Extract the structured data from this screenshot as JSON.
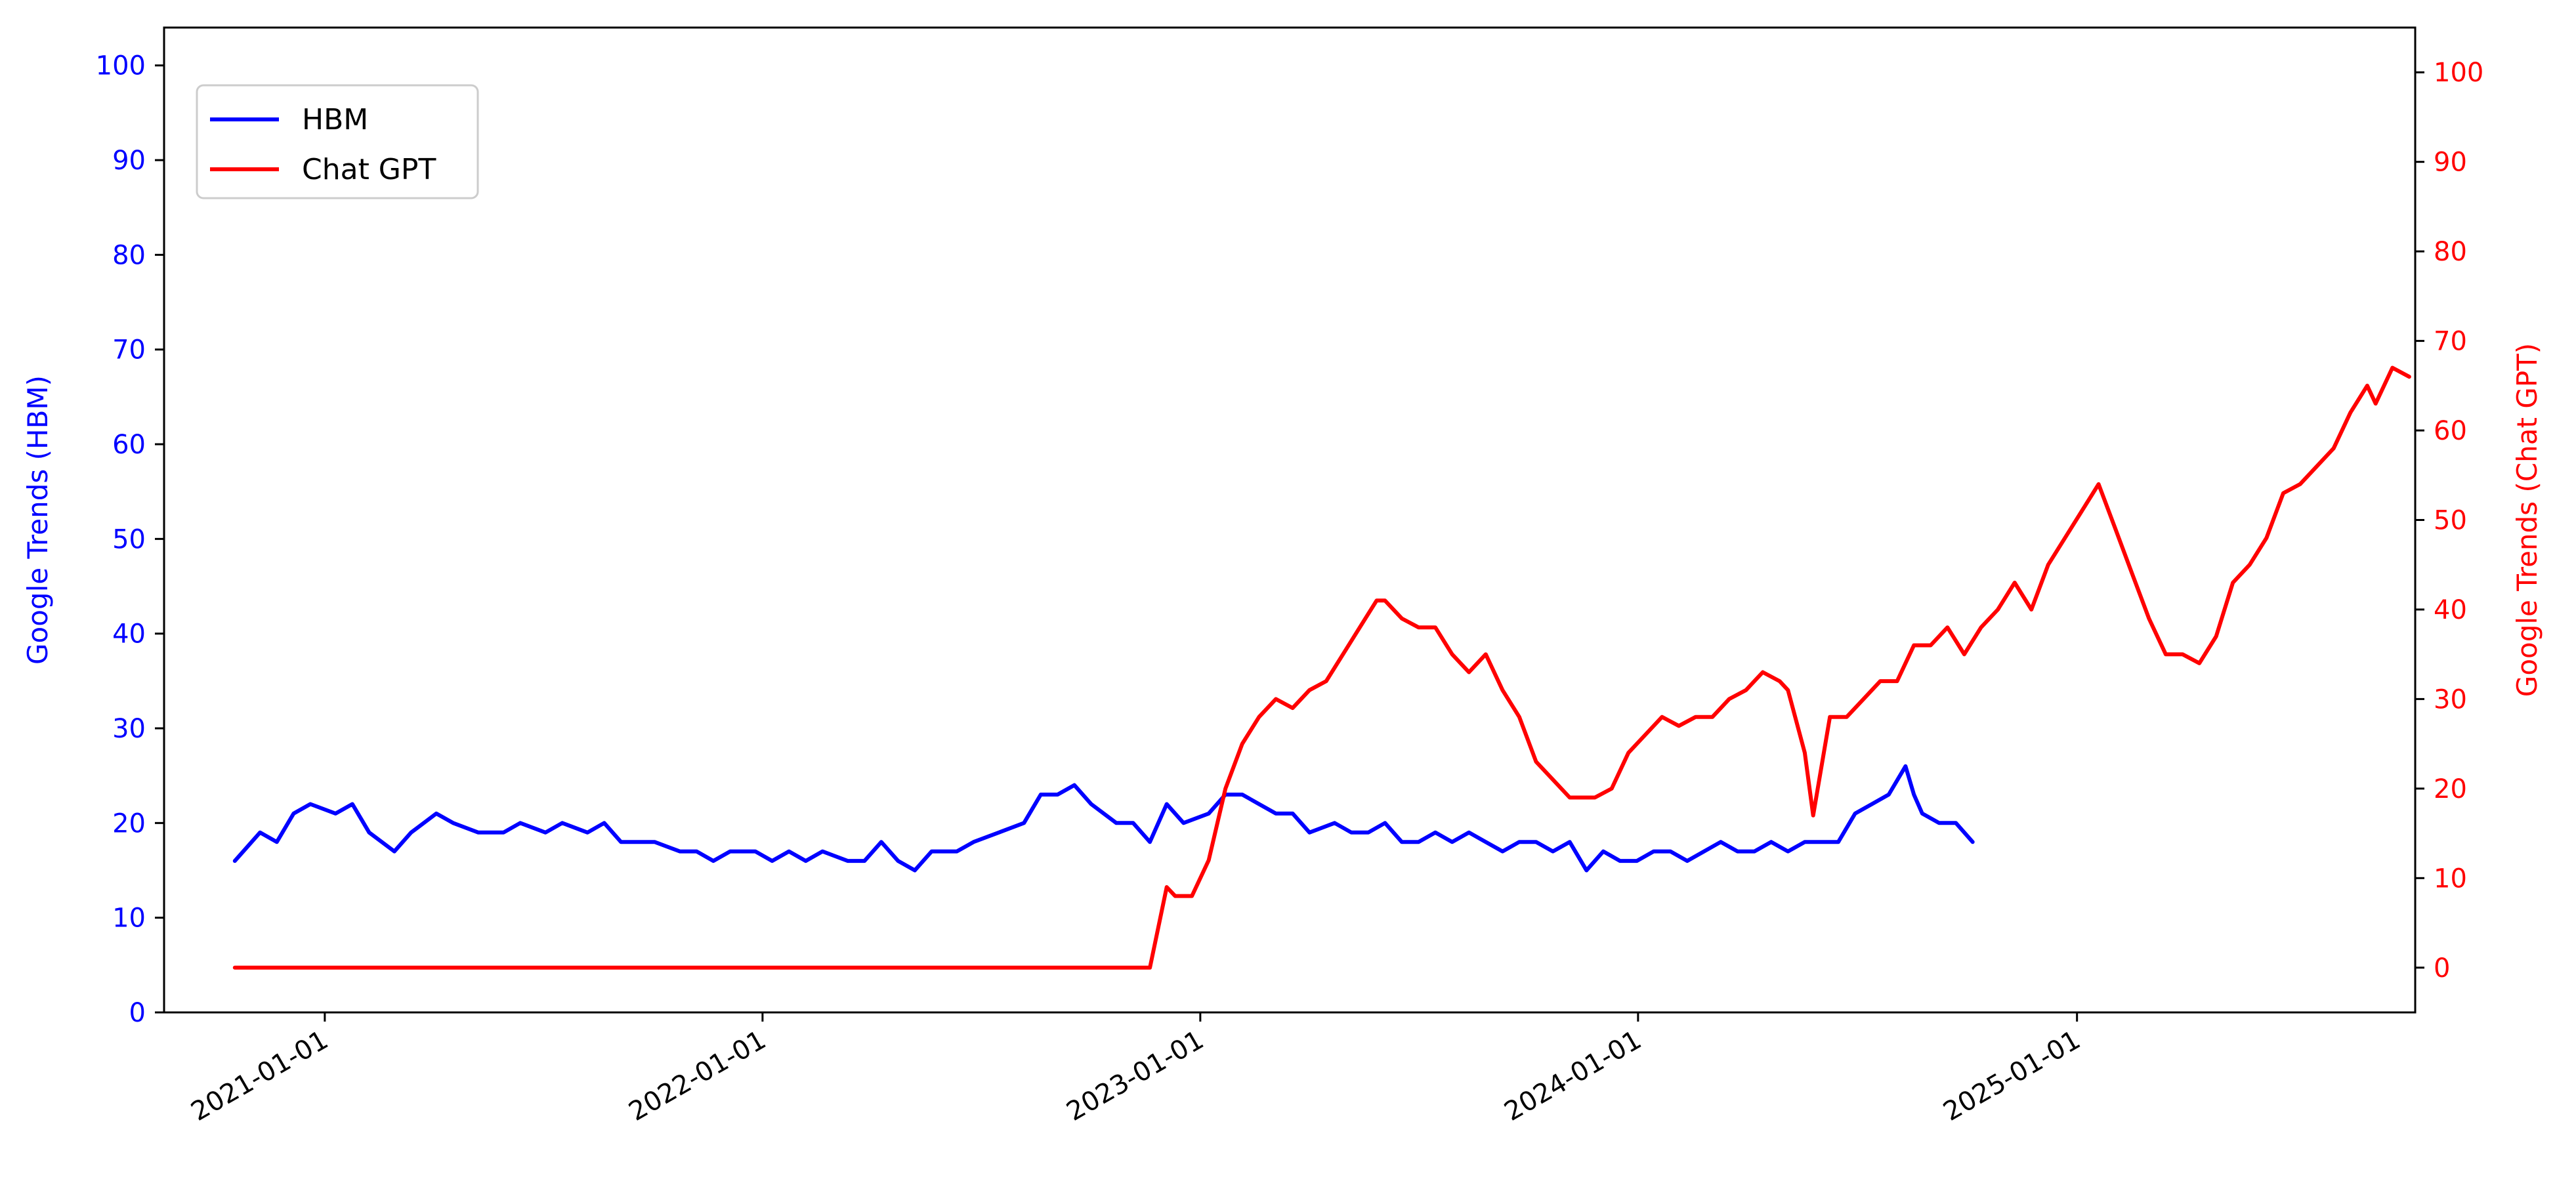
{
  "chart_data": {
    "type": "line",
    "x_axis": {
      "type": "date",
      "range": [
        "2020-08-20",
        "2025-10-10"
      ],
      "ticks": [
        "2021-01-01",
        "2022-01-01",
        "2023-01-01",
        "2024-01-01",
        "2025-01-01"
      ],
      "tick_label_rotation_deg": -30
    },
    "y_left": {
      "label": "Google Trends (HBM)",
      "range": [
        0,
        104
      ],
      "ticks": [
        0,
        10,
        20,
        30,
        40,
        50,
        60,
        70,
        80,
        90,
        100
      ],
      "color": "#0000ff"
    },
    "y_right": {
      "label": "Google Trends (Chat GPT)",
      "range": [
        -5,
        105
      ],
      "ticks": [
        0,
        10,
        20,
        30,
        40,
        50,
        60,
        70,
        80,
        90,
        100
      ],
      "color": "#ff0000"
    },
    "grid": false,
    "legend": {
      "placement": "top-left",
      "entries": [
        {
          "label": "HBM",
          "color": "#0000ff"
        },
        {
          "label": "Chat GPT",
          "color": "#ff0000"
        }
      ]
    },
    "series": [
      {
        "name": "HBM",
        "axis": "left",
        "color": "#0000ff",
        "points": [
          [
            "2020-10-18",
            16
          ],
          [
            "2020-11-08",
            19
          ],
          [
            "2020-11-22",
            18
          ],
          [
            "2020-12-06",
            21
          ],
          [
            "2020-12-20",
            22
          ],
          [
            "2021-01-10",
            21
          ],
          [
            "2021-01-24",
            22
          ],
          [
            "2021-02-07",
            19
          ],
          [
            "2021-02-28",
            17
          ],
          [
            "2021-03-14",
            19
          ],
          [
            "2021-04-04",
            21
          ],
          [
            "2021-04-18",
            20
          ],
          [
            "2021-05-09",
            19
          ],
          [
            "2021-05-30",
            19
          ],
          [
            "2021-06-13",
            20
          ],
          [
            "2021-07-04",
            19
          ],
          [
            "2021-07-18",
            20
          ],
          [
            "2021-08-08",
            19
          ],
          [
            "2021-08-22",
            20
          ],
          [
            "2021-09-05",
            18
          ],
          [
            "2021-10-03",
            18
          ],
          [
            "2021-10-24",
            17
          ],
          [
            "2021-11-07",
            17
          ],
          [
            "2021-11-21",
            16
          ],
          [
            "2021-12-05",
            17
          ],
          [
            "2021-12-26",
            17
          ],
          [
            "2022-01-09",
            16
          ],
          [
            "2022-01-23",
            17
          ],
          [
            "2022-02-06",
            16
          ],
          [
            "2022-02-20",
            17
          ],
          [
            "2022-03-13",
            16
          ],
          [
            "2022-03-27",
            16
          ],
          [
            "2022-04-10",
            18
          ],
          [
            "2022-04-24",
            16
          ],
          [
            "2022-05-08",
            15
          ],
          [
            "2022-05-22",
            17
          ],
          [
            "2022-06-12",
            17
          ],
          [
            "2022-06-26",
            18
          ],
          [
            "2022-07-17",
            19
          ],
          [
            "2022-08-07",
            20
          ],
          [
            "2022-08-21",
            23
          ],
          [
            "2022-09-04",
            23
          ],
          [
            "2022-09-18",
            24
          ],
          [
            "2022-10-02",
            22
          ],
          [
            "2022-10-23",
            20
          ],
          [
            "2022-11-06",
            20
          ],
          [
            "2022-11-20",
            18
          ],
          [
            "2022-12-04",
            22
          ],
          [
            "2022-12-18",
            20
          ],
          [
            "2023-01-08",
            21
          ],
          [
            "2023-01-22",
            23
          ],
          [
            "2023-02-05",
            23
          ],
          [
            "2023-02-19",
            22
          ],
          [
            "2023-03-05",
            21
          ],
          [
            "2023-03-19",
            21
          ],
          [
            "2023-04-02",
            19
          ],
          [
            "2023-04-23",
            20
          ],
          [
            "2023-05-07",
            19
          ],
          [
            "2023-05-21",
            19
          ],
          [
            "2023-06-04",
            20
          ],
          [
            "2023-06-18",
            18
          ],
          [
            "2023-07-02",
            18
          ],
          [
            "2023-07-16",
            19
          ],
          [
            "2023-07-30",
            18
          ],
          [
            "2023-08-13",
            19
          ],
          [
            "2023-08-27",
            18
          ],
          [
            "2023-09-10",
            17
          ],
          [
            "2023-09-24",
            18
          ],
          [
            "2023-10-08",
            18
          ],
          [
            "2023-10-22",
            17
          ],
          [
            "2023-11-05",
            18
          ],
          [
            "2023-11-19",
            15
          ],
          [
            "2023-12-03",
            17
          ],
          [
            "2023-12-17",
            16
          ],
          [
            "2023-12-31",
            16
          ],
          [
            "2024-01-14",
            17
          ],
          [
            "2024-01-28",
            17
          ],
          [
            "2024-02-11",
            16
          ],
          [
            "2024-02-25",
            17
          ],
          [
            "2024-03-10",
            18
          ],
          [
            "2024-03-24",
            17
          ],
          [
            "2024-04-07",
            17
          ],
          [
            "2024-04-21",
            18
          ],
          [
            "2024-05-05",
            17
          ],
          [
            "2024-05-19",
            18
          ],
          [
            "2024-06-02",
            18
          ],
          [
            "2024-06-16",
            18
          ],
          [
            "2024-06-30",
            21
          ],
          [
            "2024-07-14",
            22
          ],
          [
            "2024-07-28",
            23
          ],
          [
            "2024-08-11",
            26
          ],
          [
            "2024-08-18",
            23
          ],
          [
            "2024-08-25",
            21
          ],
          [
            "2024-09-08",
            20
          ],
          [
            "2024-09-22",
            20
          ],
          [
            "2024-10-06",
            18
          ]
        ]
      },
      {
        "name": "Chat GPT",
        "axis": "right",
        "color": "#ff0000",
        "points": [
          [
            "2020-10-18",
            0
          ],
          [
            "2022-11-20",
            0
          ],
          [
            "2022-12-04",
            9
          ],
          [
            "2022-12-11",
            8
          ],
          [
            "2022-12-25",
            8
          ],
          [
            "2023-01-08",
            12
          ],
          [
            "2023-01-22",
            20
          ],
          [
            "2023-02-05",
            25
          ],
          [
            "2023-02-19",
            28
          ],
          [
            "2023-03-05",
            30
          ],
          [
            "2023-03-19",
            29
          ],
          [
            "2023-04-02",
            31
          ],
          [
            "2023-04-16",
            32
          ],
          [
            "2023-04-30",
            35
          ],
          [
            "2023-05-14",
            38
          ],
          [
            "2023-05-28",
            41
          ],
          [
            "2023-06-04",
            41
          ],
          [
            "2023-06-18",
            39
          ],
          [
            "2023-07-02",
            38
          ],
          [
            "2023-07-16",
            38
          ],
          [
            "2023-07-30",
            35
          ],
          [
            "2023-08-13",
            33
          ],
          [
            "2023-08-27",
            35
          ],
          [
            "2023-09-10",
            31
          ],
          [
            "2023-09-24",
            28
          ],
          [
            "2023-10-08",
            23
          ],
          [
            "2023-10-22",
            21
          ],
          [
            "2023-11-05",
            19
          ],
          [
            "2023-11-26",
            19
          ],
          [
            "2023-12-10",
            20
          ],
          [
            "2023-12-24",
            24
          ],
          [
            "2024-01-07",
            26
          ],
          [
            "2024-01-21",
            28
          ],
          [
            "2024-02-04",
            27
          ],
          [
            "2024-02-18",
            28
          ],
          [
            "2024-03-03",
            28
          ],
          [
            "2024-03-17",
            30
          ],
          [
            "2024-03-31",
            31
          ],
          [
            "2024-04-14",
            33
          ],
          [
            "2024-04-28",
            32
          ],
          [
            "2024-05-05",
            31
          ],
          [
            "2024-05-19",
            24
          ],
          [
            "2024-05-26",
            17
          ],
          [
            "2024-06-09",
            28
          ],
          [
            "2024-06-23",
            28
          ],
          [
            "2024-07-07",
            30
          ],
          [
            "2024-07-21",
            32
          ],
          [
            "2024-08-04",
            32
          ],
          [
            "2024-08-18",
            36
          ],
          [
            "2024-09-01",
            36
          ],
          [
            "2024-09-15",
            38
          ],
          [
            "2024-09-29",
            35
          ],
          [
            "2024-10-13",
            38
          ],
          [
            "2024-10-27",
            40
          ],
          [
            "2024-11-10",
            43
          ],
          [
            "2024-11-24",
            40
          ],
          [
            "2024-12-08",
            45
          ],
          [
            "2024-12-22",
            48
          ],
          [
            "2025-01-05",
            51
          ],
          [
            "2025-01-19",
            54
          ],
          [
            "2025-02-02",
            49
          ],
          [
            "2025-02-16",
            44
          ],
          [
            "2025-03-02",
            39
          ],
          [
            "2025-03-16",
            35
          ],
          [
            "2025-03-30",
            35
          ],
          [
            "2025-04-13",
            34
          ],
          [
            "2025-04-27",
            37
          ],
          [
            "2025-05-11",
            43
          ],
          [
            "2025-05-25",
            45
          ],
          [
            "2025-06-08",
            48
          ],
          [
            "2025-06-22",
            53
          ],
          [
            "2025-07-06",
            54
          ],
          [
            "2025-07-20",
            56
          ],
          [
            "2025-08-03",
            58
          ],
          [
            "2025-08-17",
            62
          ],
          [
            "2025-08-31",
            65
          ],
          [
            "2025-09-07",
            63
          ],
          [
            "2025-09-21",
            67
          ],
          [
            "2025-10-05",
            66
          ]
        ]
      }
    ]
  }
}
